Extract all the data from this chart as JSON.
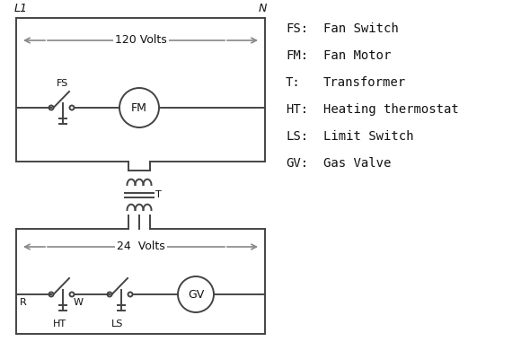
{
  "bg_color": "#ffffff",
  "line_color": "#444444",
  "arrow_color": "#888888",
  "text_color": "#111111",
  "legend": {
    "FS": "Fan Switch",
    "FM": "Fan Motor",
    "T": "Transformer",
    "HT": "Heating thermostat",
    "LS": "Limit Switch",
    "GV": "Gas Valve"
  },
  "L1": "L1",
  "N": "N",
  "v120": "120 Volts",
  "v24": "24  Volts",
  "T_lbl": "T",
  "FS_lbl": "FS",
  "FM_lbl": "FM",
  "R_lbl": "R",
  "W_lbl": "W",
  "HT_lbl": "HT",
  "LS_lbl": "LS",
  "GV_lbl": "GV"
}
